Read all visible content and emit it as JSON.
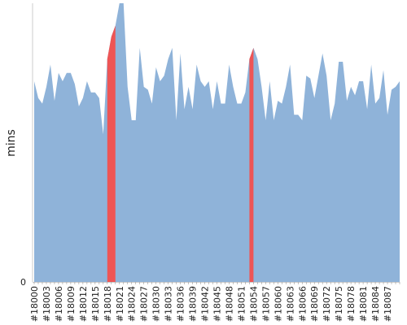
{
  "chart_data": {
    "type": "area",
    "ylabel": "mins",
    "xlabel": "",
    "title": "",
    "y_ticks": [
      "0"
    ],
    "ylim": [
      0,
      100
    ],
    "grid": false,
    "legend": "none",
    "x_ticks": [
      "#18000",
      "#18003",
      "#18006",
      "#18009",
      "#18012",
      "#18015",
      "#18018",
      "#18021",
      "#18024",
      "#18027",
      "#18030",
      "#18033",
      "#18036",
      "#18039",
      "#18042",
      "#18045",
      "#18048",
      "#18051",
      "#18054",
      "#18057",
      "#18060",
      "#18063",
      "#18066",
      "#18069",
      "#18072",
      "#18075",
      "#18078",
      "#18081",
      "#18084",
      "#18087"
    ],
    "x_start": 18000,
    "series": [
      {
        "values": [
          72,
          66,
          64,
          70,
          78,
          65,
          75,
          72,
          75,
          75,
          71,
          63,
          66,
          72,
          68,
          68,
          66,
          53,
          80,
          88,
          92,
          100,
          100,
          70,
          58,
          58,
          84,
          70,
          69,
          64,
          77,
          72,
          74,
          80,
          84,
          58,
          82,
          62,
          70,
          62,
          78,
          72,
          70,
          72,
          62,
          72,
          64,
          64,
          78,
          70,
          64,
          64,
          68,
          80,
          84,
          80,
          70,
          58,
          72,
          58,
          65,
          64,
          70,
          78,
          60,
          60,
          58,
          74,
          73,
          66,
          74,
          82,
          74,
          58,
          64,
          79,
          79,
          65,
          70,
          67,
          72,
          72,
          62,
          78,
          64,
          66,
          76,
          60,
          69,
          70,
          72
        ]
      }
    ],
    "highlight_ranges": [
      [
        18018,
        18020
      ],
      [
        18053,
        18054
      ]
    ],
    "colors": {
      "fill": "#8fb3d9",
      "highlight": "#ee5555",
      "axis": "#cccccc"
    }
  }
}
